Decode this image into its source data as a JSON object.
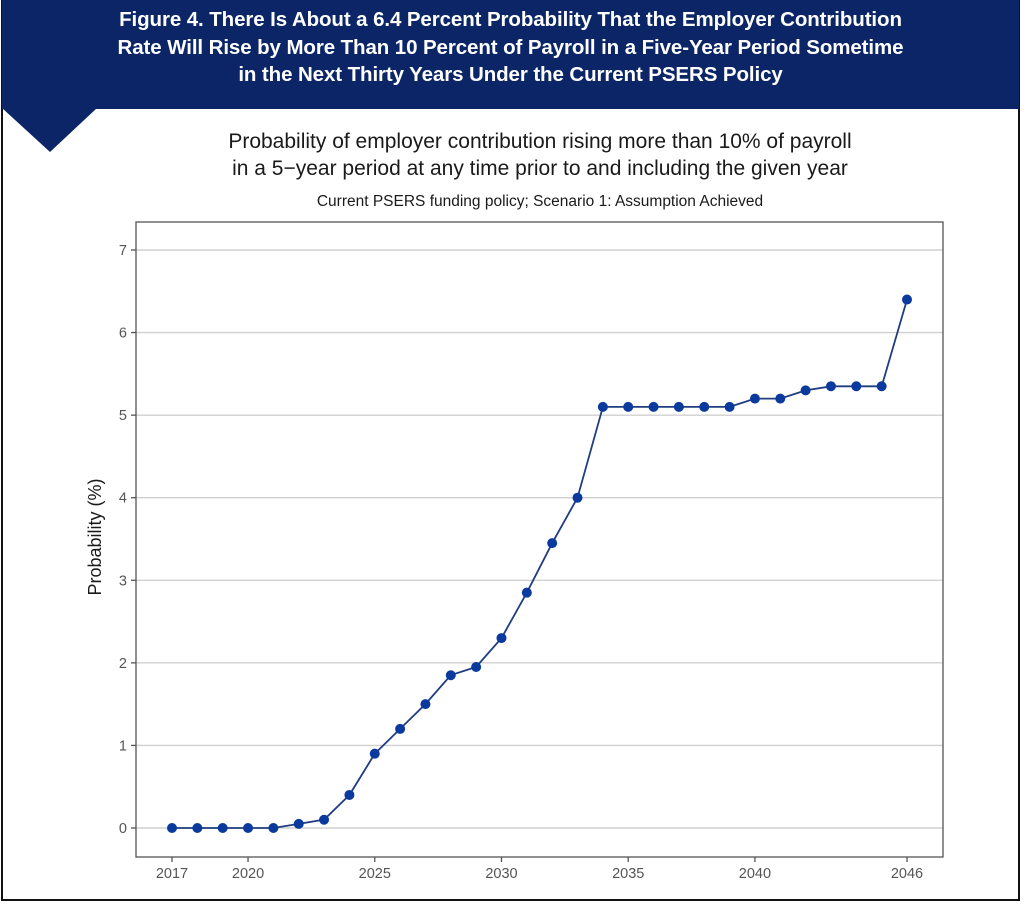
{
  "figure": {
    "banner_title_lines": [
      "Figure 4. There Is About a 6.4 Percent Probability That the Employer Contribution",
      "Rate Will Rise by More Than 10 Percent of Payroll in a Five-Year Period Sometime",
      "in the Next Thirty Years Under the Current PSERS Policy"
    ],
    "banner_color": "#0b2567"
  },
  "chart_data": {
    "type": "line",
    "title": "Probability of employer contribution rising more than 10% of payroll in a 5−year period at any time prior to and including the given year",
    "title_lines": [
      "Probability of employer contribution rising more than 10% of payroll",
      "in a 5−year period at any time prior to and including the given year"
    ],
    "subtitle": "Current PSERS funding policy; Scenario 1: Assumption Achieved",
    "xlabel": "",
    "ylabel": "Probability (%)",
    "x": [
      2017,
      2018,
      2019,
      2020,
      2021,
      2022,
      2023,
      2024,
      2025,
      2026,
      2027,
      2028,
      2029,
      2030,
      2031,
      2032,
      2033,
      2034,
      2035,
      2036,
      2037,
      2038,
      2039,
      2040,
      2041,
      2042,
      2043,
      2044,
      2045,
      2046
    ],
    "series": [
      {
        "name": "Probability (%)",
        "color": "#0b3a9e",
        "values": [
          0,
          0,
          0,
          0,
          0,
          0.05,
          0.1,
          0.4,
          0.9,
          1.2,
          1.5,
          1.85,
          1.95,
          2.3,
          2.85,
          3.45,
          4.0,
          5.1,
          5.1,
          5.1,
          5.1,
          5.1,
          5.1,
          5.2,
          5.2,
          5.3,
          5.35,
          5.35,
          5.35,
          6.4
        ]
      }
    ],
    "x_ticks": [
      2017,
      2020,
      2025,
      2030,
      2035,
      2040,
      2046
    ],
    "y_ticks": [
      0,
      1,
      2,
      3,
      4,
      5,
      6,
      7
    ],
    "xlim": [
      2015.6,
      2047.4
    ],
    "ylim": [
      -0.35,
      7.35
    ],
    "grid": {
      "horizontal": true,
      "vertical": false
    },
    "legend": null
  }
}
